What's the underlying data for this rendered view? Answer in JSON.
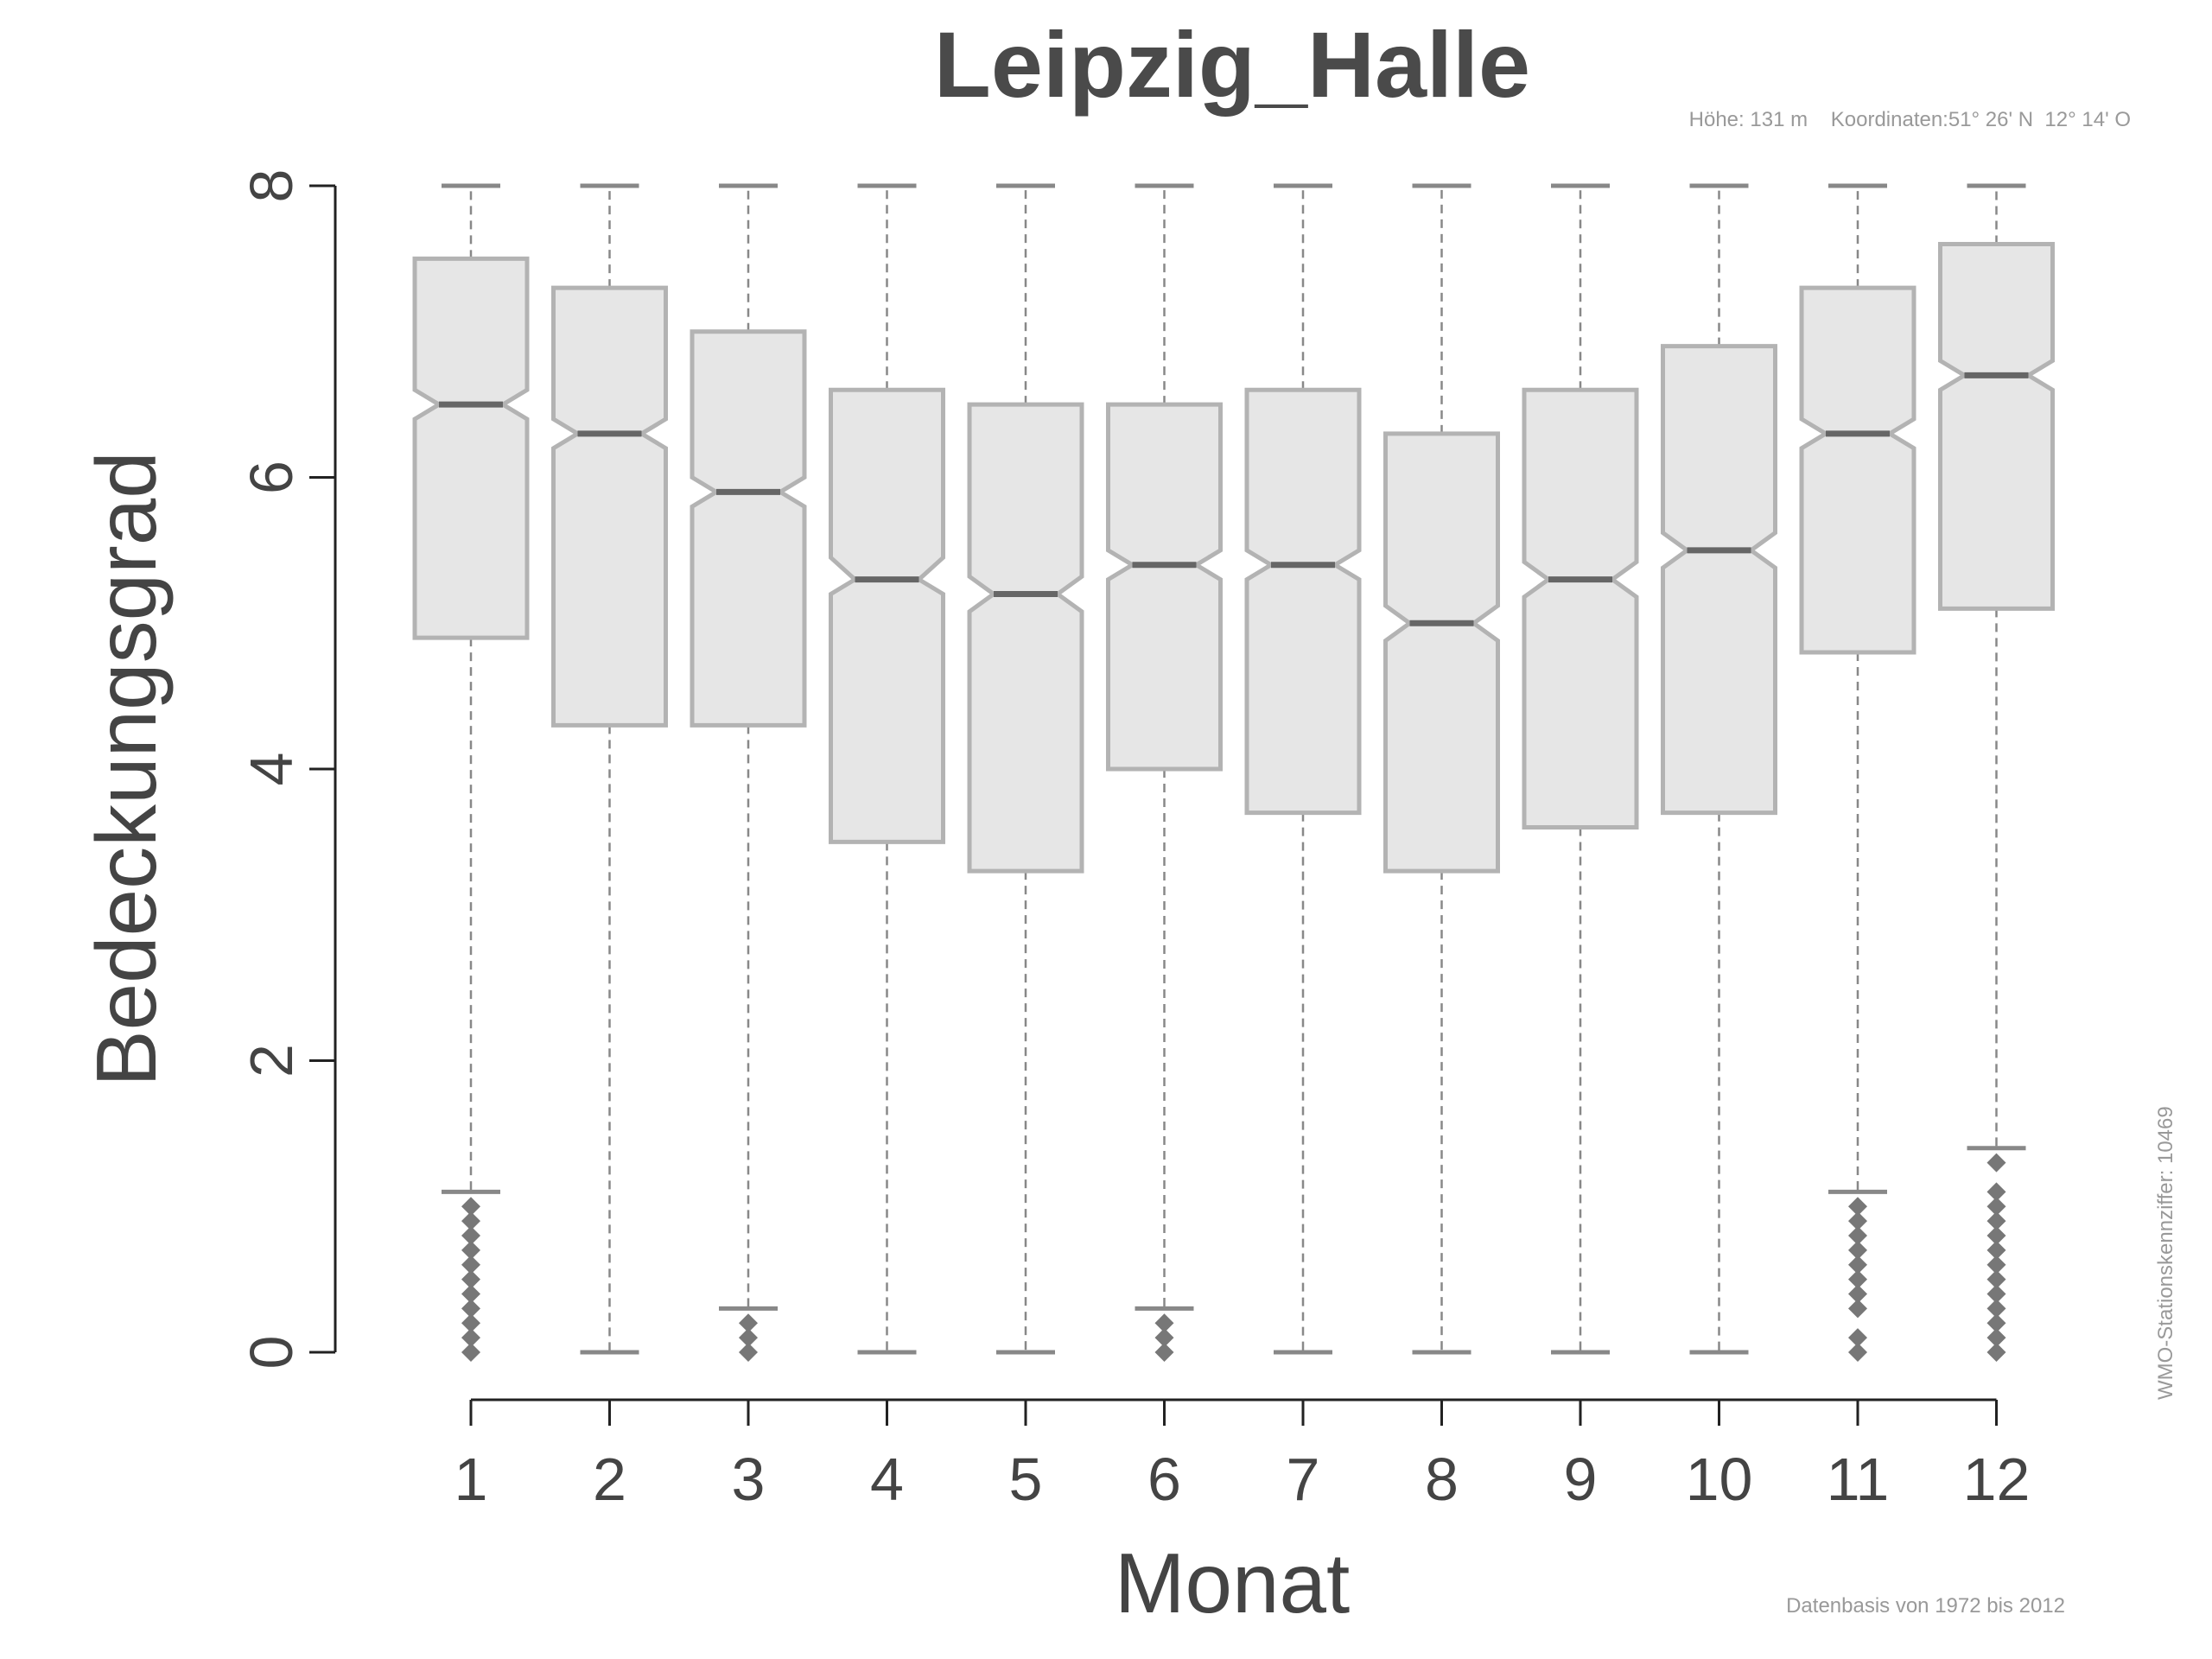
{
  "chart_data": {
    "type": "boxplot",
    "notched": true,
    "title": "Leipzig_Halle",
    "subtitle": "Höhe: 131 m    Koordinaten:51° 26' N  12° 14' O",
    "xlabel": "Monat",
    "ylabel": "Bedeckungsgrad",
    "source_note": "Datenbasis von 1972 bis 2012",
    "station_note": "WMO-Stationskennziffer: 10469",
    "ylim": [
      0,
      8
    ],
    "yticks": [
      "0",
      "2",
      "4",
      "6",
      "8"
    ],
    "categories": [
      "1",
      "2",
      "3",
      "4",
      "5",
      "6",
      "7",
      "8",
      "9",
      "10",
      "11",
      "12"
    ],
    "boxes": [
      {
        "min": 1.1,
        "q1": 4.9,
        "median": 6.5,
        "q3": 7.5,
        "max": 8,
        "notch": [
          6.4,
          6.6
        ],
        "outliers": [
          0,
          0.1,
          0.2,
          0.3,
          0.4,
          0.5,
          0.6,
          0.7,
          0.8,
          0.9,
          1.0
        ]
      },
      {
        "min": 0,
        "q1": 4.3,
        "median": 6.3,
        "q3": 7.3,
        "max": 8,
        "notch": [
          6.2,
          6.4
        ],
        "outliers": []
      },
      {
        "min": 0.3,
        "q1": 4.3,
        "median": 5.9,
        "q3": 7.0,
        "max": 8,
        "notch": [
          5.8,
          6.0
        ],
        "outliers": [
          0,
          0.1,
          0.2
        ]
      },
      {
        "min": 0,
        "q1": 3.5,
        "median": 5.3,
        "q3": 6.6,
        "max": 8,
        "notch": [
          5.2,
          5.45
        ],
        "outliers": []
      },
      {
        "min": 0,
        "q1": 3.3,
        "median": 5.2,
        "q3": 6.5,
        "max": 8,
        "notch": [
          5.08,
          5.32
        ],
        "outliers": []
      },
      {
        "min": 0.3,
        "q1": 4.0,
        "median": 5.4,
        "q3": 6.5,
        "max": 8,
        "notch": [
          5.3,
          5.5
        ],
        "outliers": [
          0,
          0.1,
          0.2
        ]
      },
      {
        "min": 0,
        "q1": 3.7,
        "median": 5.4,
        "q3": 6.6,
        "max": 8,
        "notch": [
          5.3,
          5.5
        ],
        "outliers": []
      },
      {
        "min": 0,
        "q1": 3.3,
        "median": 5.0,
        "q3": 6.3,
        "max": 8,
        "notch": [
          4.88,
          5.12
        ],
        "outliers": []
      },
      {
        "min": 0,
        "q1": 3.6,
        "median": 5.3,
        "q3": 6.6,
        "max": 8,
        "notch": [
          5.18,
          5.42
        ],
        "outliers": []
      },
      {
        "min": 0,
        "q1": 3.7,
        "median": 5.5,
        "q3": 6.9,
        "max": 8,
        "notch": [
          5.38,
          5.62
        ],
        "outliers": []
      },
      {
        "min": 1.1,
        "q1": 4.8,
        "median": 6.3,
        "q3": 7.3,
        "max": 8,
        "notch": [
          6.2,
          6.4
        ],
        "outliers": [
          0,
          0.1,
          0.3,
          0.4,
          0.5,
          0.6,
          0.7,
          0.8,
          0.9,
          1.0
        ]
      },
      {
        "min": 1.4,
        "q1": 5.1,
        "median": 6.7,
        "q3": 7.6,
        "max": 8,
        "notch": [
          6.6,
          6.8
        ],
        "outliers": [
          0,
          0.1,
          0.2,
          0.3,
          0.4,
          0.5,
          0.6,
          0.7,
          0.8,
          0.9,
          1.0,
          1.1,
          1.3
        ]
      }
    ],
    "colors": {
      "box_fill": "#e6e6e6",
      "box_stroke": "#b3b3b3",
      "median": "#666666",
      "whisker": "#888888",
      "outlier": "#777777",
      "axis": "#222222",
      "text": "#444444",
      "meta_text": "#999999"
    },
    "grid": false,
    "legend": "none"
  }
}
